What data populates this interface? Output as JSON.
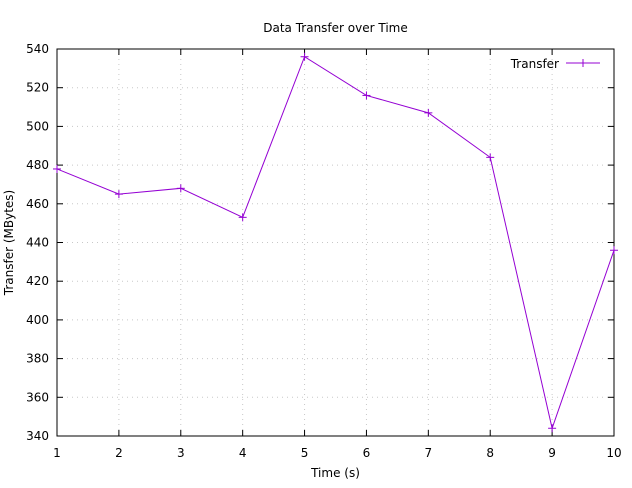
{
  "chart_data": {
    "type": "line",
    "title": "Data Transfer over Time",
    "xlabel": "Time (s)",
    "ylabel": "Transfer (MBytes)",
    "xlim": [
      1,
      10
    ],
    "ylim": [
      340,
      540
    ],
    "xticks": [
      "1",
      "2",
      "3",
      "4",
      "5",
      "6",
      "7",
      "8",
      "9",
      "10"
    ],
    "yticks": [
      "340",
      "360",
      "380",
      "400",
      "420",
      "440",
      "460",
      "480",
      "500",
      "520",
      "540"
    ],
    "grid": true,
    "legend_position": "top-right",
    "x": [
      1,
      2,
      3,
      4,
      5,
      6,
      7,
      8,
      9,
      10
    ],
    "series": [
      {
        "name": "Transfer",
        "color": "#9400d3",
        "marker": "plus",
        "values": [
          478,
          465,
          468,
          453,
          536,
          516,
          507,
          484,
          344,
          436
        ]
      }
    ]
  }
}
